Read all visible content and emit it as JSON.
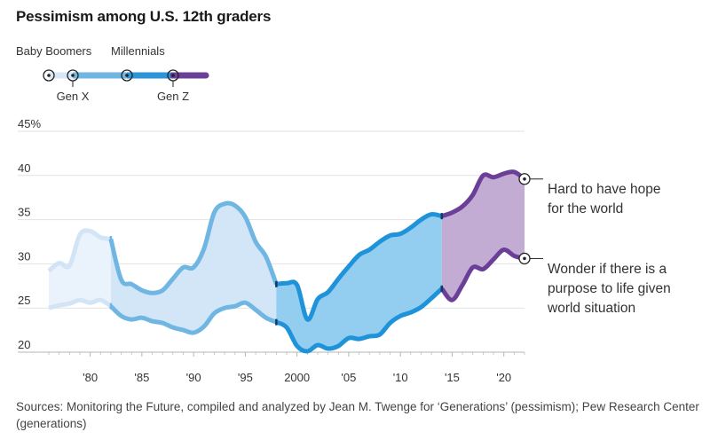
{
  "title": "Pessimism among U.S. 12th graders",
  "legend": {
    "items": [
      {
        "label": "Baby Boomers",
        "color": "#d7e7f6"
      },
      {
        "label": "Gen X",
        "color": "#6fb6e3"
      },
      {
        "label": "Millennials",
        "color": "#2b95d8"
      },
      {
        "label": "Gen Z",
        "color": "#6b3f98"
      }
    ]
  },
  "colors": {
    "boomers_line": "#d2e4f5",
    "boomers_fill": "#eaf2fb",
    "genx_line": "#6fb6e3",
    "genx_fill": "#d3e6f7",
    "millennials_line": "#1f93d9",
    "millennials_fill": "#93cdf0",
    "genz_line": "#6b3f98",
    "genz_fill": "#c3acd3",
    "grid": "#e2e2e2",
    "axis": "#b5b5b5"
  },
  "chart_data": {
    "type": "area",
    "ylim": [
      20,
      45
    ],
    "xlim": [
      1976,
      2022
    ],
    "yticks": [
      "45%",
      "40",
      "35",
      "30",
      "25",
      "20"
    ],
    "xticks": [
      "'80",
      "'85",
      "'90",
      "'95",
      "2000",
      "'05",
      "'10",
      "'15",
      "'20"
    ],
    "grid": true,
    "series": [
      {
        "name": "Hard to have hope for the world",
        "x": [
          1976,
          1977,
          1978,
          1979,
          1980,
          1981,
          1982,
          1983,
          1984,
          1985,
          1986,
          1987,
          1988,
          1989,
          1990,
          1991,
          1992,
          1993,
          1994,
          1995,
          1996,
          1997,
          1998,
          1999,
          2000,
          2001,
          2002,
          2003,
          2004,
          2005,
          2006,
          2007,
          2008,
          2009,
          2010,
          2011,
          2012,
          2013,
          2014,
          2015,
          2016,
          2017,
          2018,
          2019,
          2020,
          2021,
          2022
        ],
        "values": [
          29.2,
          30.1,
          29.8,
          33.3,
          33.7,
          33.0,
          32.8,
          28.2,
          27.7,
          27.0,
          26.7,
          27.0,
          28.3,
          29.6,
          29.6,
          31.7,
          35.8,
          36.8,
          36.6,
          35.3,
          32.5,
          30.8,
          27.7,
          27.8,
          27.6,
          23.7,
          26.0,
          26.8,
          28.3,
          29.7,
          31.0,
          31.6,
          32.5,
          33.2,
          33.4,
          34.1,
          35.0,
          35.6,
          35.4,
          35.8,
          36.5,
          37.8,
          40.0,
          39.8,
          40.2,
          40.4,
          39.6
        ]
      },
      {
        "name": "Wonder if there is a purpose to life given world situation",
        "x": [
          1976,
          1977,
          1978,
          1979,
          1980,
          1981,
          1982,
          1983,
          1984,
          1985,
          1986,
          1987,
          1988,
          1989,
          1990,
          1991,
          1992,
          1993,
          1994,
          1995,
          1996,
          1997,
          1998,
          1999,
          2000,
          2001,
          2002,
          2003,
          2004,
          2005,
          2006,
          2007,
          2008,
          2009,
          2010,
          2011,
          2012,
          2013,
          2014,
          2015,
          2016,
          2017,
          2018,
          2019,
          2020,
          2021,
          2022
        ],
        "values": [
          25.0,
          25.3,
          25.5,
          25.9,
          25.6,
          25.9,
          25.2,
          24.1,
          23.7,
          23.9,
          23.5,
          23.3,
          22.8,
          22.5,
          22.2,
          22.9,
          24.4,
          25.0,
          25.2,
          25.6,
          24.8,
          23.9,
          23.4,
          22.8,
          20.7,
          20.1,
          20.8,
          20.4,
          20.7,
          21.6,
          21.5,
          21.8,
          22.0,
          23.3,
          24.1,
          24.5,
          25.1,
          26.1,
          27.2,
          25.9,
          27.6,
          29.6,
          29.4,
          30.5,
          31.6,
          30.9,
          30.6
        ]
      }
    ],
    "segments": [
      {
        "generation": "Baby Boomers",
        "from": 1976,
        "to": 1982
      },
      {
        "generation": "Gen X",
        "from": 1982,
        "to": 1998
      },
      {
        "generation": "Millennials",
        "from": 1998,
        "to": 2014
      },
      {
        "generation": "Gen Z",
        "from": 2014,
        "to": 2022
      }
    ],
    "annotations": [
      "Hard to have hope for the world",
      "Wonder if there is a purpose to life given world situation"
    ]
  },
  "source": "Sources: Monitoring the Future, compiled and analyzed by Jean M. Twenge for ‘Generations’ (pessimism); Pew Research Center (generations)"
}
